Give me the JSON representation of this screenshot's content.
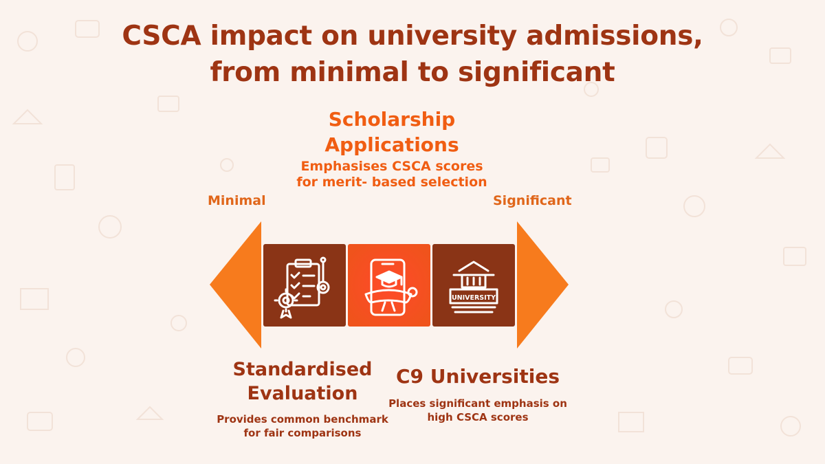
{
  "title": {
    "line1": "CSCA impact on university admissions,",
    "line2": "from minimal to significant"
  },
  "scale": {
    "left_label": "Minimal",
    "right_label": "Significant"
  },
  "stages": [
    {
      "title": "Standardised Evaluation",
      "description": "Provides common benchmark for fair comparisons",
      "icon": "checklist-gear-icon"
    },
    {
      "title": "Scholarship Applications",
      "description": "Emphasises CSCA scores for merit- based selection",
      "icon": "mobile-graduation-icon"
    },
    {
      "title": "C9 Universities",
      "description": "Places significant emphasis on high CSCA scores",
      "icon": "university-building-icon",
      "icon_text": "UNIVERSITY"
    }
  ],
  "colors": {
    "heading": "#9e3413",
    "accent": "#f05d12",
    "arrow": "#f77b1d",
    "box_dark": "#8a3416",
    "box_highlight": "#f0531c",
    "background": "#fbf3ee"
  }
}
